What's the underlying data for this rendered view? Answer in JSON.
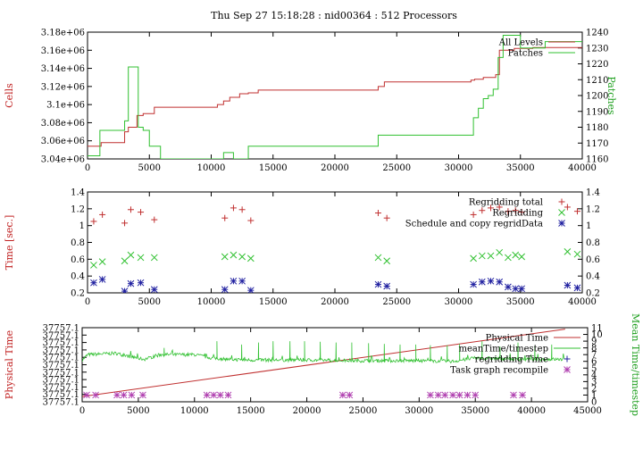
{
  "title": "Thu Sep 27 15:18:28 : nid00364 : 512 Processors",
  "colors": {
    "red": "#c03030",
    "green": "#30c030",
    "blue": "#2020a0",
    "magenta": "#b040b0",
    "axisLabelRed": "#c02020",
    "axisLabelGreen": "#20a020"
  },
  "chart_data": [
    {
      "type": "line",
      "ylabel": "Cells",
      "y2label": "Patches",
      "xlim": [
        0,
        40000
      ],
      "ylim": [
        3040000,
        3180000
      ],
      "y2lim": [
        1160,
        1240
      ],
      "xticks": [
        "0",
        "5000",
        "10000",
        "15000",
        "20000",
        "25000",
        "30000",
        "35000",
        "40000"
      ],
      "yticks": [
        "3.04e+06",
        "3.06e+06",
        "3.08e+06",
        "3.1e+06",
        "3.12e+06",
        "3.14e+06",
        "3.16e+06",
        "3.18e+06"
      ],
      "y2ticks": [
        "1160",
        "1170",
        "1180",
        "1190",
        "1200",
        "1210",
        "1220",
        "1230",
        "1240"
      ],
      "legend_position": "top-right",
      "grid": false,
      "series": [
        {
          "name": "All Levels",
          "axis": "left",
          "style": "step",
          "color": "#c03030",
          "points": [
            [
              0,
              3054000
            ],
            [
              1100,
              3058000
            ],
            [
              3000,
              3070000
            ],
            [
              3300,
              3075000
            ],
            [
              4000,
              3088000
            ],
            [
              4500,
              3090000
            ],
            [
              5400,
              3097000
            ],
            [
              10500,
              3100000
            ],
            [
              11000,
              3104000
            ],
            [
              11500,
              3108000
            ],
            [
              12300,
              3112000
            ],
            [
              13000,
              3113000
            ],
            [
              13800,
              3116000
            ],
            [
              23500,
              3120000
            ],
            [
              24000,
              3125000
            ],
            [
              31000,
              3127000
            ],
            [
              31300,
              3128000
            ],
            [
              32000,
              3130000
            ],
            [
              33000,
              3133000
            ],
            [
              33300,
              3160000
            ],
            [
              34500,
              3162000
            ],
            [
              36000,
              3163000
            ],
            [
              40000,
              3163000
            ]
          ]
        },
        {
          "name": "Patches",
          "axis": "right",
          "style": "step",
          "color": "#30c030",
          "points": [
            [
              0,
              1162
            ],
            [
              1000,
              1178
            ],
            [
              3000,
              1184
            ],
            [
              3300,
              1218
            ],
            [
              4100,
              1180
            ],
            [
              4500,
              1178
            ],
            [
              5000,
              1168
            ],
            [
              5900,
              1160
            ],
            [
              11000,
              1164
            ],
            [
              11800,
              1160
            ],
            [
              13000,
              1168
            ],
            [
              23500,
              1175
            ],
            [
              30800,
              1175
            ],
            [
              31200,
              1186
            ],
            [
              31600,
              1192
            ],
            [
              32000,
              1198
            ],
            [
              32400,
              1200
            ],
            [
              32800,
              1204
            ],
            [
              33200,
              1224
            ],
            [
              33600,
              1238
            ],
            [
              34500,
              1238
            ],
            [
              35000,
              1230
            ],
            [
              37000,
              1234
            ],
            [
              40000,
              1234
            ]
          ]
        }
      ]
    },
    {
      "type": "scatter",
      "ylabel": "Time [sec.]",
      "xlim": [
        0,
        40000
      ],
      "ylim": [
        0.2,
        1.4
      ],
      "xticks": [
        "0",
        "5000",
        "10000",
        "15000",
        "20000",
        "25000",
        "30000",
        "35000",
        "40000"
      ],
      "yticks": [
        "0.2",
        "0.4",
        "0.6",
        "0.8",
        "1",
        "1.2",
        "1.4"
      ],
      "y2ticks": [
        "0.2",
        "0.4",
        "0.6",
        "0.8",
        "1",
        "1.2",
        "1.4"
      ],
      "legend_position": "top-right",
      "grid": false,
      "series": [
        {
          "name": "Regridding total",
          "marker": "plus",
          "color": "#c03030",
          "points": [
            [
              500,
              1.05
            ],
            [
              1200,
              1.13
            ],
            [
              3000,
              1.03
            ],
            [
              3500,
              1.19
            ],
            [
              4300,
              1.16
            ],
            [
              5400,
              1.07
            ],
            [
              11100,
              1.09
            ],
            [
              11800,
              1.21
            ],
            [
              12500,
              1.19
            ],
            [
              13200,
              1.06
            ],
            [
              23500,
              1.15
            ],
            [
              24200,
              1.09
            ],
            [
              31200,
              1.13
            ],
            [
              31900,
              1.18
            ],
            [
              32600,
              1.21
            ],
            [
              33300,
              1.22
            ],
            [
              34000,
              1.17
            ],
            [
              34600,
              1.18
            ],
            [
              35100,
              1.16
            ],
            [
              38800,
              1.22
            ],
            [
              39600,
              1.17
            ]
          ]
        },
        {
          "name": "Regridding",
          "marker": "x",
          "color": "#30c030",
          "points": [
            [
              500,
              0.53
            ],
            [
              1200,
              0.57
            ],
            [
              3000,
              0.58
            ],
            [
              3500,
              0.65
            ],
            [
              4300,
              0.62
            ],
            [
              5400,
              0.62
            ],
            [
              11100,
              0.63
            ],
            [
              11800,
              0.65
            ],
            [
              12500,
              0.63
            ],
            [
              13200,
              0.61
            ],
            [
              23500,
              0.62
            ],
            [
              24200,
              0.58
            ],
            [
              31200,
              0.61
            ],
            [
              31900,
              0.64
            ],
            [
              32600,
              0.64
            ],
            [
              33300,
              0.68
            ],
            [
              34000,
              0.62
            ],
            [
              34600,
              0.65
            ],
            [
              35100,
              0.63
            ],
            [
              38800,
              0.69
            ],
            [
              39600,
              0.66
            ]
          ]
        },
        {
          "name": "Schedule and copy regridData",
          "marker": "star",
          "color": "#2020a0",
          "points": [
            [
              500,
              0.32
            ],
            [
              1200,
              0.36
            ],
            [
              3000,
              0.22
            ],
            [
              3500,
              0.31
            ],
            [
              4300,
              0.32
            ],
            [
              5400,
              0.24
            ],
            [
              11100,
              0.24
            ],
            [
              11800,
              0.34
            ],
            [
              12500,
              0.34
            ],
            [
              13200,
              0.23
            ],
            [
              23500,
              0.3
            ],
            [
              24200,
              0.28
            ],
            [
              31200,
              0.3
            ],
            [
              31900,
              0.33
            ],
            [
              32600,
              0.34
            ],
            [
              33300,
              0.33
            ],
            [
              34000,
              0.27
            ],
            [
              34600,
              0.25
            ],
            [
              35100,
              0.25
            ],
            [
              38800,
              0.29
            ],
            [
              39600,
              0.26
            ]
          ]
        }
      ]
    },
    {
      "type": "line",
      "ylabel": "Physical Time",
      "y2label": "Mean Time/timestep",
      "xlim": [
        0,
        45000
      ],
      "ylim": [
        0,
        10
      ],
      "y2lim": [
        0,
        11
      ],
      "xticks": [
        "0",
        "5000",
        "10000",
        "15000",
        "20000",
        "25000",
        "30000",
        "35000",
        "40000",
        "45000"
      ],
      "yticks": [
        "37757.1",
        "37757.1",
        "37757.1",
        "37757.1",
        "37757.1",
        "37757.1",
        "37757.1",
        "37757.1",
        "37757.1",
        "37757.1",
        "37757.1"
      ],
      "y2ticks": [
        "0",
        "1",
        "2",
        "3",
        "4",
        "5",
        "6",
        "7",
        "8",
        "9",
        "10",
        "11"
      ],
      "legend_position": "top-right",
      "grid": false,
      "series": [
        {
          "name": "Physical Time",
          "axis": "left",
          "style": "line",
          "color": "#c03030",
          "points": [
            [
              0,
              0.7
            ],
            [
              43000,
              9.8
            ]
          ]
        },
        {
          "name": "meanTime/timestep",
          "axis": "right",
          "style": "noisy-line",
          "color": "#30c030",
          "baseline": [
            [
              0,
              6.2
            ],
            [
              500,
              7.0
            ],
            [
              3000,
              7.2
            ],
            [
              4000,
              6.8
            ],
            [
              5500,
              6.3
            ],
            [
              7000,
              7.0
            ],
            [
              10000,
              7.0
            ],
            [
              11500,
              6.5
            ],
            [
              13000,
              6.3
            ],
            [
              15000,
              6.2
            ],
            [
              20000,
              6.2
            ],
            [
              25000,
              6.1
            ],
            [
              30000,
              6.1
            ],
            [
              33000,
              6.0
            ],
            [
              35000,
              6.5
            ],
            [
              40000,
              6.3
            ],
            [
              43000,
              6.3
            ]
          ],
          "spikes": [
            [
              7300,
              8.0
            ],
            [
              12000,
              9.0
            ],
            [
              14200,
              8.5
            ],
            [
              15700,
              8.8
            ],
            [
              17000,
              9.0
            ],
            [
              18500,
              9.0
            ],
            [
              19800,
              9.0
            ],
            [
              21200,
              8.9
            ],
            [
              22600,
              8.8
            ],
            [
              24000,
              8.8
            ],
            [
              25500,
              8.7
            ],
            [
              26900,
              8.6
            ],
            [
              28300,
              8.5
            ],
            [
              29700,
              8.5
            ],
            [
              31000,
              8.4
            ],
            [
              32500,
              8.4
            ],
            [
              33600,
              8.6
            ],
            [
              35600,
              9.0
            ],
            [
              37200,
              8.2
            ],
            [
              38800,
              8.8
            ],
            [
              40300,
              8.3
            ],
            [
              41800,
              8.5
            ]
          ]
        },
        {
          "name": "regridding Time",
          "marker": "plus",
          "color": "#2020a0",
          "points": []
        },
        {
          "name": "Task graph recompile",
          "marker": "star",
          "axis": "right",
          "color": "#b040b0",
          "points": [
            [
              400,
              1
            ],
            [
              1200,
              1
            ],
            [
              3100,
              1
            ],
            [
              3700,
              1
            ],
            [
              4400,
              1
            ],
            [
              5400,
              1
            ],
            [
              11100,
              1
            ],
            [
              11700,
              1
            ],
            [
              12300,
              1
            ],
            [
              13000,
              1
            ],
            [
              23200,
              1
            ],
            [
              23800,
              1
            ],
            [
              31000,
              1
            ],
            [
              31700,
              1
            ],
            [
              32300,
              1
            ],
            [
              33000,
              1
            ],
            [
              33600,
              1
            ],
            [
              34300,
              1
            ],
            [
              35000,
              1
            ],
            [
              38400,
              1
            ],
            [
              39200,
              1
            ]
          ]
        }
      ]
    }
  ]
}
